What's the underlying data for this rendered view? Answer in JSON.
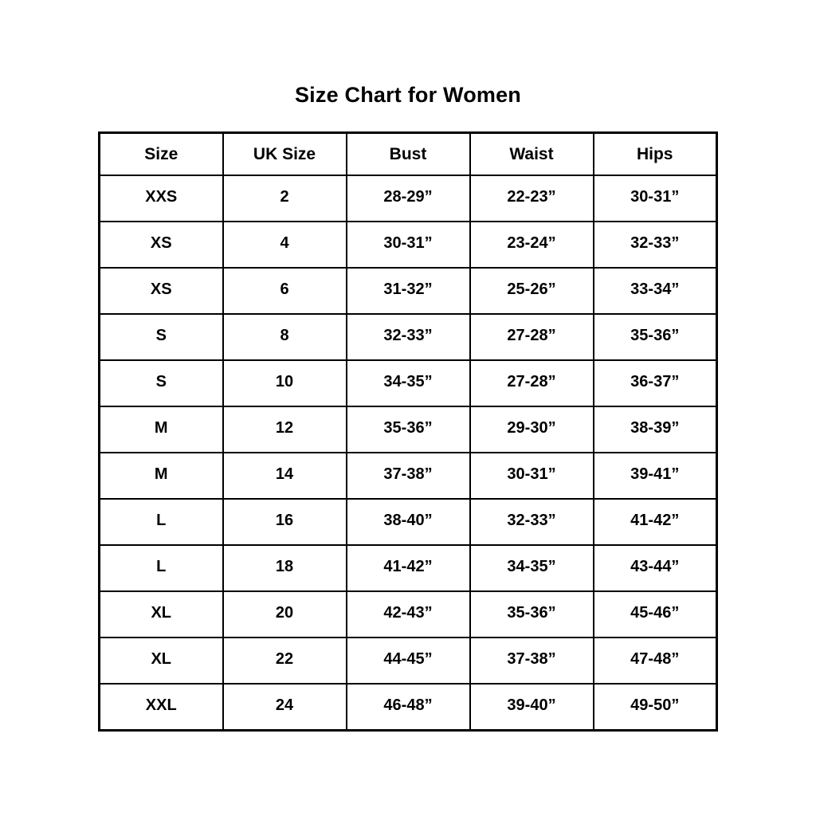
{
  "title": "Size Chart for Women",
  "chart_data": {
    "type": "table",
    "title": "Size Chart for Women",
    "columns": [
      "Size",
      "UK Size",
      "Bust",
      "Waist",
      "Hips"
    ],
    "rows": [
      [
        "XXS",
        "2",
        "28-29”",
        "22-23”",
        "30-31”"
      ],
      [
        "XS",
        "4",
        "30-31”",
        "23-24”",
        "32-33”"
      ],
      [
        "XS",
        "6",
        "31-32”",
        "25-26”",
        "33-34”"
      ],
      [
        "S",
        "8",
        "32-33”",
        "27-28”",
        "35-36”"
      ],
      [
        "S",
        "10",
        "34-35”",
        "27-28”",
        "36-37”"
      ],
      [
        "M",
        "12",
        "35-36”",
        "29-30”",
        "38-39”"
      ],
      [
        "M",
        "14",
        "37-38”",
        "30-31”",
        "39-41”"
      ],
      [
        "L",
        "16",
        "38-40”",
        "32-33”",
        "41-42”"
      ],
      [
        "L",
        "18",
        "41-42”",
        "34-35”",
        "43-44”"
      ],
      [
        "XL",
        "20",
        "42-43”",
        "35-36”",
        "45-46”"
      ],
      [
        "XL",
        "22",
        "44-45”",
        "37-38”",
        "47-48”"
      ],
      [
        "XXL",
        "24",
        "46-48”",
        "39-40”",
        "49-50”"
      ]
    ],
    "layout": {
      "grid": "all-borders",
      "border_color": "#000000",
      "background": "#ffffff",
      "text_align": "center"
    }
  }
}
